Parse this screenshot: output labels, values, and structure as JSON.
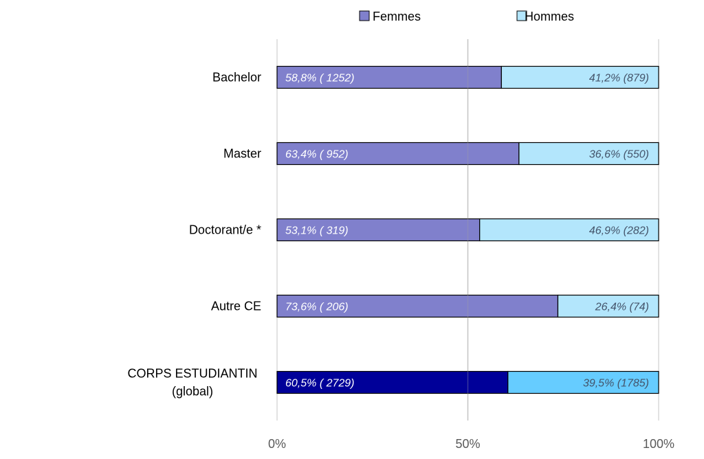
{
  "chart_data": {
    "type": "bar",
    "orientation": "horizontal",
    "stacked": "percent",
    "title": "",
    "xlabel": "",
    "ylabel": "",
    "xlim": [
      0,
      100
    ],
    "x_ticks": [
      "0%",
      "50%",
      "100%"
    ],
    "grid": true,
    "legend_position": "top",
    "categories": [
      {
        "lines": [
          "Bachelor"
        ]
      },
      {
        "lines": [
          "Master"
        ]
      },
      {
        "lines": [
          "Doctorant/e *"
        ]
      },
      {
        "lines": [
          "Autre CE"
        ]
      },
      {
        "lines": [
          "CORPS ESTUDIANTIN",
          "(global)"
        ]
      }
    ],
    "series": [
      {
        "name": "Femmes",
        "color": "#8080CC",
        "highlight_color": "#000099",
        "values": [
          58.8,
          63.4,
          53.1,
          73.6,
          60.5
        ],
        "counts": [
          1252,
          952,
          319,
          206,
          2729
        ],
        "labels": [
          "58,8% ( 1252)",
          "63,4% ( 952)",
          "53,1% ( 319)",
          "73,6% ( 206)",
          "60,5% ( 2729)"
        ]
      },
      {
        "name": "Hommes",
        "color": "#B3E6FC",
        "highlight_color": "#66CCFF",
        "values": [
          41.2,
          36.6,
          46.9,
          26.4,
          39.5
        ],
        "counts": [
          879,
          550,
          282,
          74,
          1785
        ],
        "labels": [
          "41,2% (879)",
          "36,6% (550)",
          "46,9% (282)",
          "26,4% (74)",
          "39,5% (1785)"
        ]
      }
    ]
  }
}
